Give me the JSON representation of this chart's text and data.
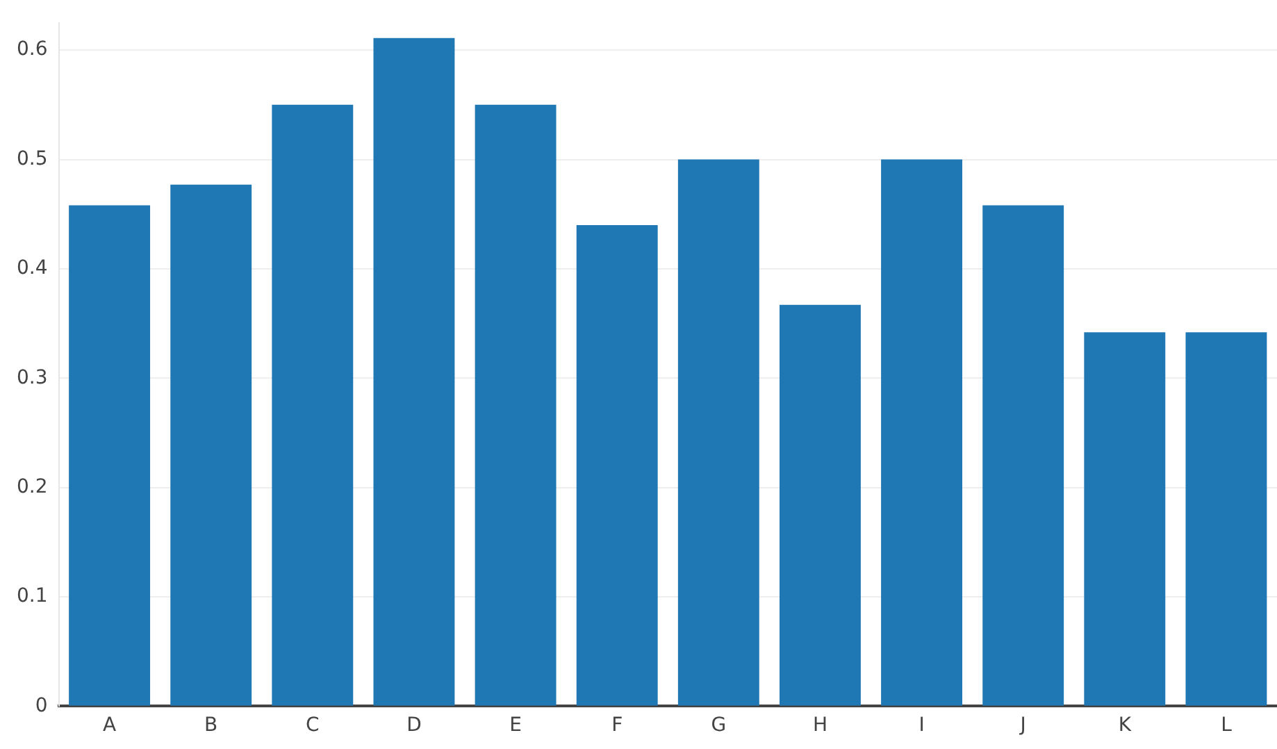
{
  "chart_data": {
    "type": "bar",
    "categories": [
      "A",
      "B",
      "C",
      "D",
      "E",
      "F",
      "G",
      "H",
      "I",
      "J",
      "K",
      "L"
    ],
    "values": [
      0.458,
      0.477,
      0.55,
      0.611,
      0.55,
      0.44,
      0.5,
      0.367,
      0.5,
      0.458,
      0.342,
      0.342
    ],
    "color": "#1f77b4",
    "ylim": [
      0,
      0.625
    ],
    "yticks": [
      0,
      0.1,
      0.2,
      0.3,
      0.4,
      0.5,
      0.6
    ],
    "grid": "y",
    "legend": false
  }
}
